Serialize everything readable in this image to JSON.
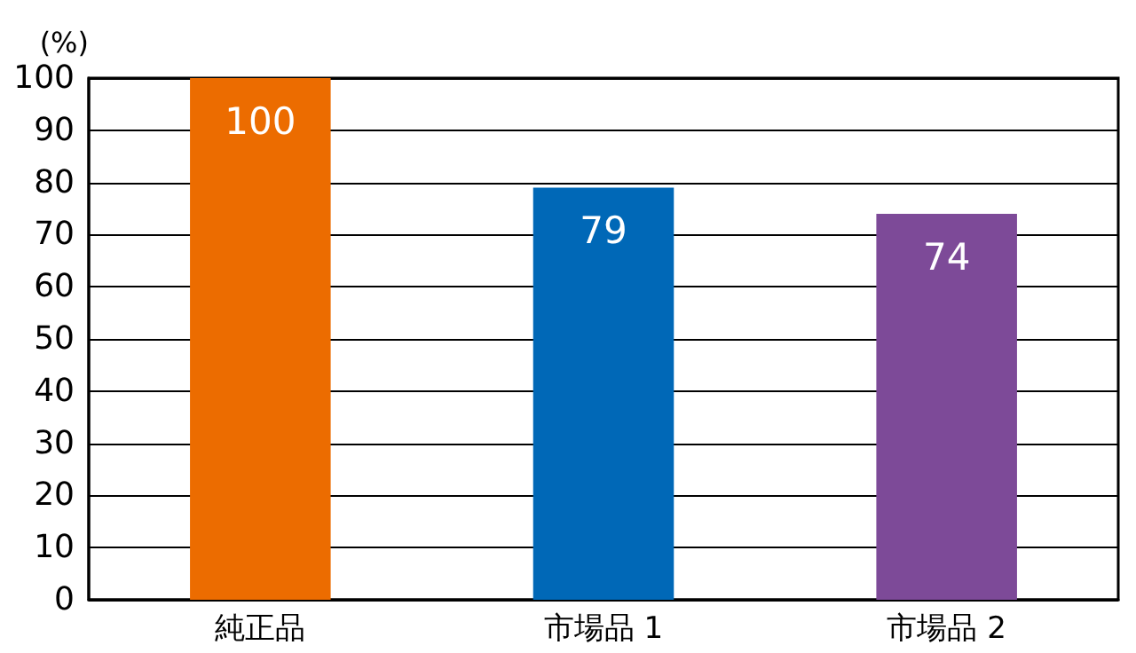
{
  "chart_data": {
    "type": "bar",
    "ylabel": "(%)",
    "categories": [
      "純正品",
      "市場品 1",
      "市場品 2"
    ],
    "values": [
      100,
      79,
      74
    ],
    "colors": [
      "#ec6c00",
      "#0068b7",
      "#7d4a98"
    ],
    "ylim": [
      0,
      100
    ],
    "yticks": [
      0,
      10,
      20,
      30,
      40,
      50,
      60,
      70,
      80,
      90,
      100
    ],
    "grid": "y",
    "data_labels": true
  }
}
